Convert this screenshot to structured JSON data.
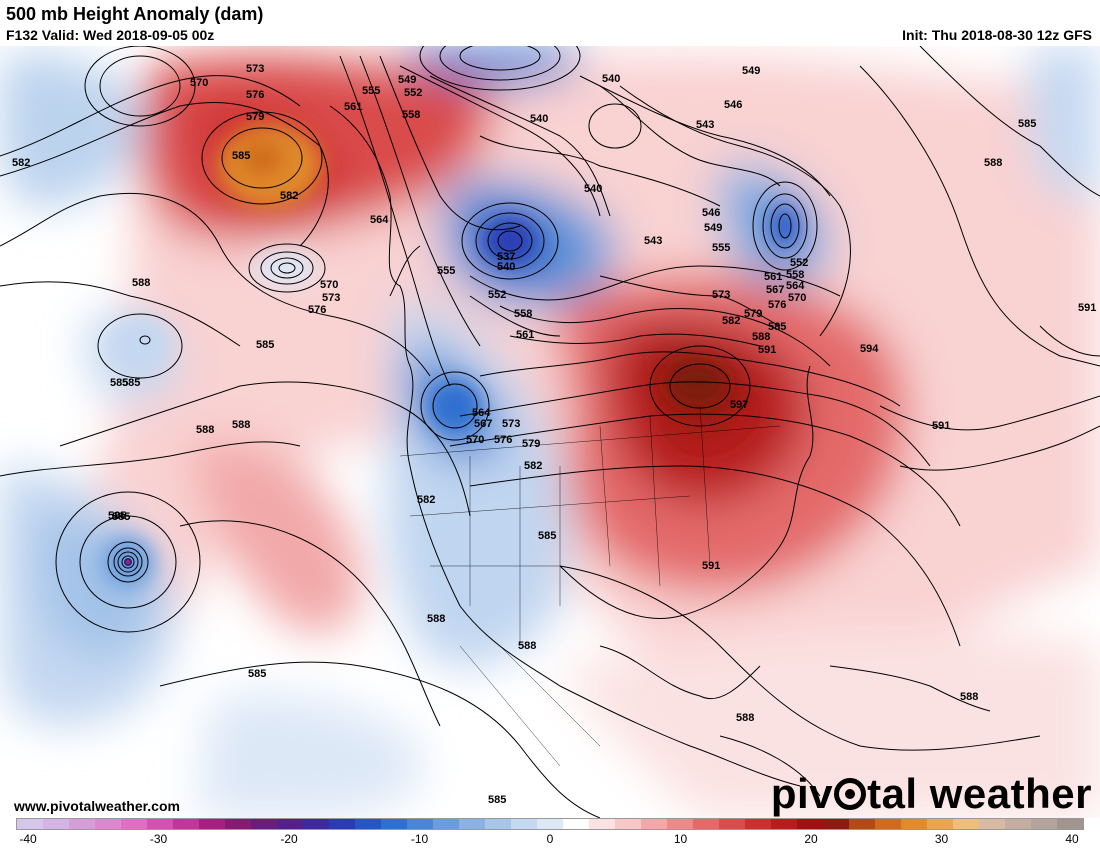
{
  "header": {
    "title": "500 mb Height Anomaly (dam)",
    "subtitle": "F132 Valid: Wed 2018-09-05 00z",
    "init": "Init: Thu 2018-08-30 12z GFS"
  },
  "footer": {
    "url": "www.pivotalweather.com",
    "logo_left": "piv",
    "logo_right": "tal weather"
  },
  "colorbar": {
    "ticks": [
      "-40",
      "-30",
      "-20",
      "-10",
      "0",
      "10",
      "20",
      "30",
      "40"
    ],
    "colors": [
      "#d6c6ea",
      "#d4b4e4",
      "#d59ed8",
      "#dd87cf",
      "#e06ec2",
      "#d351b0",
      "#c0369a",
      "#a61f80",
      "#871b73",
      "#6a1e7a",
      "#55208a",
      "#3d2a9e",
      "#2b3cb3",
      "#2656c6",
      "#2f6fd0",
      "#4a86d6",
      "#6a9ddd",
      "#8ab3e3",
      "#a8c6ea",
      "#c4d8f1",
      "#dde8f7",
      "#ffffff",
      "#fbe2e2",
      "#f7c6c6",
      "#f2a8a8",
      "#ec8a8a",
      "#e46a6a",
      "#da4c4c",
      "#cc2f2f",
      "#b81c1c",
      "#a01212",
      "#8e1b10",
      "#b24a16",
      "#cf6a1e",
      "#e08a2c",
      "#e9a651",
      "#ecbf7d",
      "#d7b9a4",
      "#c4aea2",
      "#b3a39c",
      "#a0958f"
    ]
  },
  "map": {
    "contour_labels": [
      {
        "text": "570",
        "id": "c570-a"
      },
      {
        "text": "573",
        "id": "c573-a"
      },
      {
        "text": "576",
        "id": "c576-a"
      },
      {
        "text": "579",
        "id": "c579-a"
      },
      {
        "text": "585",
        "id": "c585-a"
      },
      {
        "text": "582",
        "id": "c582-a"
      },
      {
        "text": "582",
        "id": "c582-b"
      },
      {
        "text": "588",
        "id": "c588-a"
      },
      {
        "text": "585",
        "id": "c585-b"
      },
      {
        "text": "585",
        "id": "c585-c"
      },
      {
        "text": "588",
        "id": "c588-b"
      },
      {
        "text": "585",
        "id": "c585-d"
      },
      {
        "text": "585",
        "id": "c585-e"
      },
      {
        "text": "585",
        "id": "c585-f"
      },
      {
        "text": "570",
        "id": "c570-b"
      },
      {
        "text": "573",
        "id": "c573-b"
      },
      {
        "text": "576",
        "id": "c576-b"
      },
      {
        "text": "564",
        "id": "c564-a"
      },
      {
        "text": "561",
        "id": "c561-a"
      },
      {
        "text": "555",
        "id": "c555-a"
      },
      {
        "text": "558",
        "id": "c558-a"
      },
      {
        "text": "549",
        "id": "c549-a"
      },
      {
        "text": "552",
        "id": "c552-a"
      },
      {
        "text": "555",
        "id": "c555-b"
      },
      {
        "text": "537",
        "id": "c537-a"
      },
      {
        "text": "540",
        "id": "c540-a"
      },
      {
        "text": "552",
        "id": "c552-b"
      },
      {
        "text": "558",
        "id": "c558-b"
      },
      {
        "text": "561",
        "id": "c561-b"
      },
      {
        "text": "564",
        "id": "c564-b"
      },
      {
        "text": "567",
        "id": "c567-a"
      },
      {
        "text": "570",
        "id": "c570-c"
      },
      {
        "text": "573",
        "id": "c573-c"
      },
      {
        "text": "576",
        "id": "c576-c"
      },
      {
        "text": "579",
        "id": "c579-b"
      },
      {
        "text": "582",
        "id": "c582-c"
      },
      {
        "text": "582",
        "id": "c582-d"
      },
      {
        "text": "585",
        "id": "c585-g"
      },
      {
        "text": "588",
        "id": "c588-c"
      },
      {
        "text": "588",
        "id": "c588-d"
      },
      {
        "text": "540",
        "id": "c540-b"
      },
      {
        "text": "540",
        "id": "c540-c"
      },
      {
        "text": "543",
        "id": "c543-a"
      },
      {
        "text": "540",
        "id": "c540-d"
      },
      {
        "text": "543",
        "id": "c543-b"
      },
      {
        "text": "549",
        "id": "c549-b"
      },
      {
        "text": "546",
        "id": "c546-a"
      },
      {
        "text": "546",
        "id": "c546-b"
      },
      {
        "text": "549",
        "id": "c549-c"
      },
      {
        "text": "555",
        "id": "c555-c"
      },
      {
        "text": "552",
        "id": "c552-c"
      },
      {
        "text": "561",
        "id": "c561-c"
      },
      {
        "text": "558",
        "id": "c558-c"
      },
      {
        "text": "564",
        "id": "c564-c"
      },
      {
        "text": "567",
        "id": "c567-b"
      },
      {
        "text": "570",
        "id": "c570-d"
      },
      {
        "text": "573",
        "id": "c573-d"
      },
      {
        "text": "576",
        "id": "c576-d"
      },
      {
        "text": "579",
        "id": "c579-c"
      },
      {
        "text": "582",
        "id": "c582-e"
      },
      {
        "text": "585",
        "id": "c585-h"
      },
      {
        "text": "588",
        "id": "c588-e"
      },
      {
        "text": "591",
        "id": "c591-a"
      },
      {
        "text": "597",
        "id": "c597-a"
      },
      {
        "text": "594",
        "id": "c594-a"
      },
      {
        "text": "591",
        "id": "c591-b"
      },
      {
        "text": "591",
        "id": "c591-c"
      },
      {
        "text": "591",
        "id": "c591-d"
      },
      {
        "text": "585",
        "id": "c585-i"
      },
      {
        "text": "588",
        "id": "c588-f"
      },
      {
        "text": "588",
        "id": "c588-g"
      },
      {
        "text": "588",
        "id": "c588-h"
      },
      {
        "text": "588",
        "id": "c588-i"
      },
      {
        "text": "585",
        "id": "c585-j"
      },
      {
        "text": "585",
        "id": "c585-k"
      }
    ]
  }
}
